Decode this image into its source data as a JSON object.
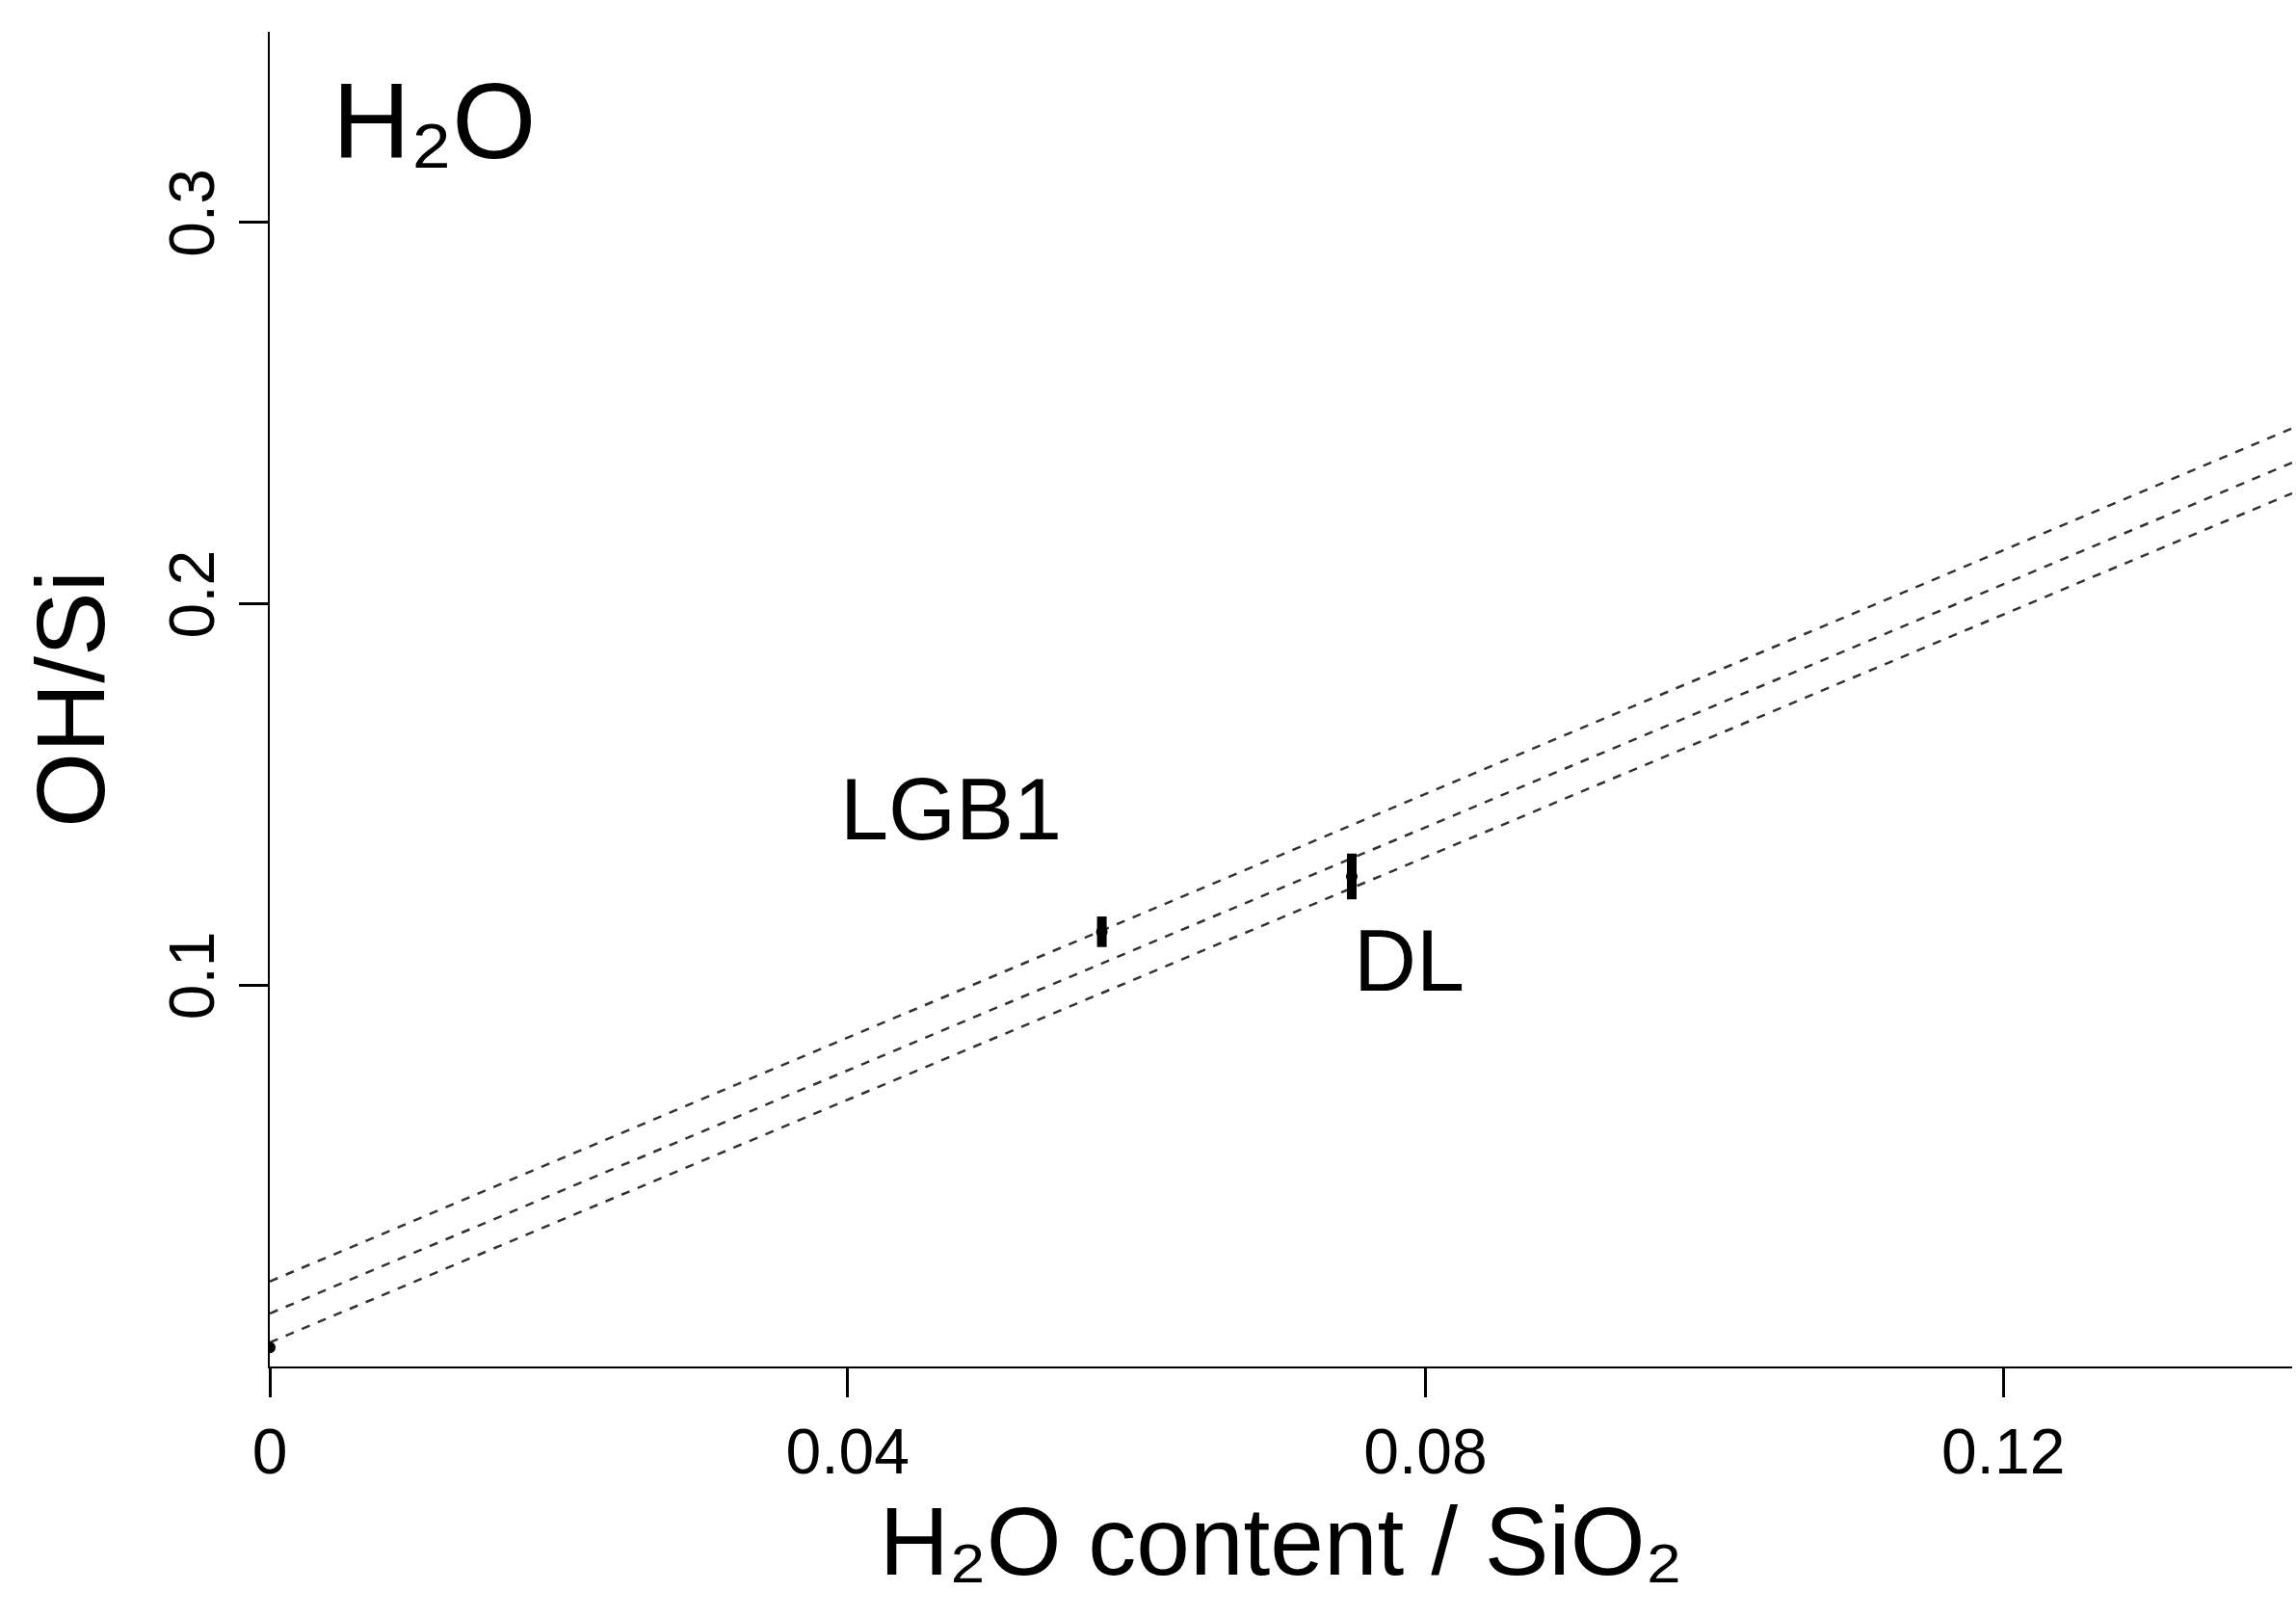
{
  "chart_data": {
    "type": "scatter",
    "xlabel": "H₂O content / SiO₂",
    "ylabel": "OH/Si",
    "annotations": [
      "H₂O",
      {
        "text": "LGB1",
        "x": 0.0576,
        "y": 0.114
      },
      {
        "text": "DL",
        "x": 0.0749,
        "y": 0.1285
      }
    ],
    "series": [
      {
        "type": "line",
        "color": "#333333",
        "line_style": "dashed",
        "marker": "none",
        "x": [
          0,
          0.14
        ],
        "values": [
          0.0223,
          0.246
        ]
      },
      {
        "type": "line",
        "color": "#333333",
        "line_style": "dashed",
        "marker": "none",
        "x": [
          0,
          0.14
        ],
        "values": [
          0.0139,
          0.237
        ]
      },
      {
        "type": "line",
        "color": "#333333",
        "line_style": "dashed",
        "marker": "none",
        "x": [
          0,
          0.14
        ],
        "values": [
          0.0063,
          0.229
        ]
      },
      {
        "type": "scatter",
        "color": "#000000",
        "marker": "circle",
        "x": [
          0,
          0.0576,
          0.0749
        ],
        "values": [
          0.005,
          0.114,
          0.1285
        ],
        "errors": [
          null,
          0.004,
          0.006
        ]
      }
    ],
    "xlim": [
      0,
      0.14
    ],
    "xticks": [
      0,
      0.04,
      0.08,
      0.12
    ],
    "ylim": [
      0,
      0.35
    ],
    "yticks": [
      0.1,
      0.2,
      0.3
    ],
    "grid": false
  }
}
